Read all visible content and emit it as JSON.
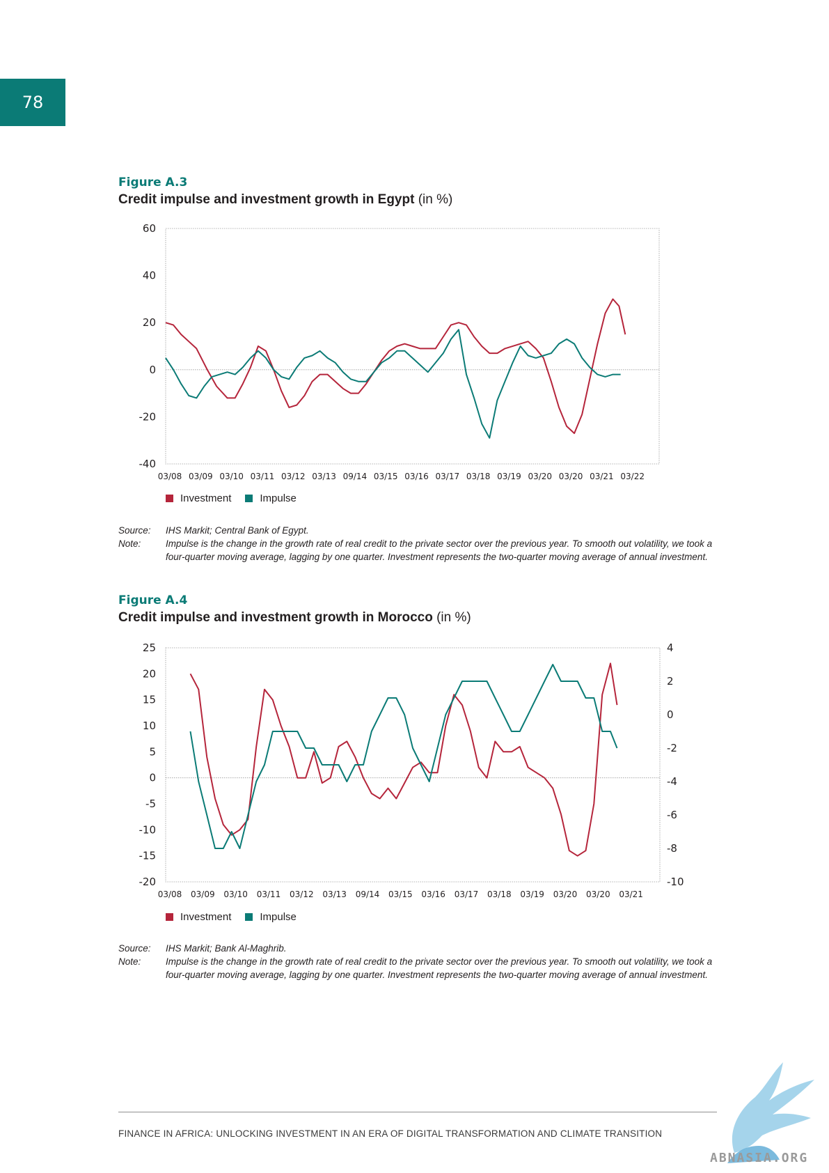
{
  "page_number": "78",
  "colors": {
    "investment": "#b5253b",
    "impulse": "#0b7b76",
    "accent": "#0b7b76"
  },
  "figures": [
    {
      "label": "Figure A.3",
      "title": "Credit impulse and investment growth in Egypt",
      "unit": "(in %)",
      "legend": {
        "investment": "Investment",
        "impulse": "Impulse"
      },
      "source_key": "Source:",
      "source": "IHS Markit; Central Bank of Egypt.",
      "note_key": "Note:",
      "note": "Impulse is the change in the growth rate of real credit to the private sector over the previous year. To smooth out volatility, we took a four-quarter moving average, lagging by one quarter. Investment represents the two-quarter moving average of annual investment."
    },
    {
      "label": "Figure A.4",
      "title": "Credit impulse and investment growth in Morocco",
      "unit": "(in %)",
      "legend": {
        "investment": "Investment",
        "impulse": "Impulse"
      },
      "source_key": "Source:",
      "source": "IHS Markit; Bank Al-Maghrib.",
      "note_key": "Note:",
      "note": "Impulse is the change in the growth rate of real credit to the private sector over the previous year. To smooth out volatility, we took a four-quarter moving average, lagging by one quarter. Investment represents the two-quarter moving average of annual investment."
    }
  ],
  "chart_data": [
    {
      "type": "line",
      "title": "Credit impulse and investment growth in Egypt",
      "x_ticks": [
        "03/08",
        "03/09",
        "03/10",
        "03/11",
        "03/12",
        "03/13",
        "09/14",
        "03/15",
        "03/16",
        "03/17",
        "03/18",
        "03/19",
        "03/20",
        "03/20",
        "03/21",
        "03/22"
      ],
      "x_range": [
        0,
        16
      ],
      "y_ticks": [
        -40,
        -20,
        0,
        20,
        40,
        60
      ],
      "ylim": [
        -40,
        60
      ],
      "grid": false,
      "legend_position": "bottom-left",
      "series": [
        {
          "name": "Investment",
          "axis": "left",
          "points": [
            [
              0,
              20
            ],
            [
              0.25,
              19
            ],
            [
              0.5,
              15
            ],
            [
              0.75,
              12
            ],
            [
              1,
              9
            ],
            [
              1.35,
              0
            ],
            [
              1.65,
              -7
            ],
            [
              2,
              -12
            ],
            [
              2.25,
              -12
            ],
            [
              2.5,
              -6
            ],
            [
              2.75,
              1
            ],
            [
              3,
              10
            ],
            [
              3.25,
              8
            ],
            [
              3.5,
              0
            ],
            [
              3.75,
              -9
            ],
            [
              4,
              -16
            ],
            [
              4.25,
              -15
            ],
            [
              4.5,
              -11
            ],
            [
              4.75,
              -5
            ],
            [
              5,
              -2
            ],
            [
              5.25,
              -2
            ],
            [
              5.5,
              -5
            ],
            [
              5.75,
              -8
            ],
            [
              6,
              -10
            ],
            [
              6.25,
              -10
            ],
            [
              6.5,
              -6
            ],
            [
              6.75,
              -1
            ],
            [
              7,
              4
            ],
            [
              7.25,
              8
            ],
            [
              7.5,
              10
            ],
            [
              7.75,
              11
            ],
            [
              8,
              10
            ],
            [
              8.25,
              9
            ],
            [
              8.5,
              9
            ],
            [
              8.75,
              9
            ],
            [
              9,
              14
            ],
            [
              9.25,
              19
            ],
            [
              9.5,
              20
            ],
            [
              9.75,
              19
            ],
            [
              10,
              14
            ],
            [
              10.25,
              10
            ],
            [
              10.5,
              7
            ],
            [
              10.75,
              7
            ],
            [
              11,
              9
            ],
            [
              11.5,
              11
            ],
            [
              11.75,
              12
            ],
            [
              12,
              9
            ],
            [
              12.25,
              5
            ],
            [
              12.5,
              -5
            ],
            [
              12.75,
              -16
            ],
            [
              13,
              -24
            ],
            [
              13.25,
              -27
            ],
            [
              13.5,
              -19
            ],
            [
              13.75,
              -4
            ],
            [
              14,
              11
            ],
            [
              14.25,
              24
            ],
            [
              14.5,
              30
            ],
            [
              14.7,
              27
            ],
            [
              14.9,
              15
            ]
          ]
        },
        {
          "name": "Impulse",
          "axis": "left",
          "points": [
            [
              0,
              5
            ],
            [
              0.25,
              0
            ],
            [
              0.5,
              -6
            ],
            [
              0.75,
              -11
            ],
            [
              1,
              -12
            ],
            [
              1.25,
              -7
            ],
            [
              1.5,
              -3
            ],
            [
              1.75,
              -2
            ],
            [
              2,
              -1
            ],
            [
              2.25,
              -2
            ],
            [
              2.5,
              1
            ],
            [
              2.75,
              5
            ],
            [
              3,
              8
            ],
            [
              3.25,
              5
            ],
            [
              3.5,
              0
            ],
            [
              3.75,
              -3
            ],
            [
              4,
              -4
            ],
            [
              4.25,
              1
            ],
            [
              4.5,
              5
            ],
            [
              4.75,
              6
            ],
            [
              5,
              8
            ],
            [
              5.25,
              5
            ],
            [
              5.5,
              3
            ],
            [
              5.75,
              -1
            ],
            [
              6,
              -4
            ],
            [
              6.25,
              -5
            ],
            [
              6.5,
              -5
            ],
            [
              6.75,
              -1
            ],
            [
              7,
              3
            ],
            [
              7.25,
              5
            ],
            [
              7.5,
              8
            ],
            [
              7.75,
              8
            ],
            [
              8,
              5
            ],
            [
              8.25,
              2
            ],
            [
              8.5,
              -1
            ],
            [
              8.75,
              3
            ],
            [
              9,
              7
            ],
            [
              9.25,
              13
            ],
            [
              9.5,
              17
            ],
            [
              9.75,
              -2
            ],
            [
              10,
              -12
            ],
            [
              10.25,
              -23
            ],
            [
              10.5,
              -29
            ],
            [
              10.75,
              -13
            ],
            [
              11,
              -5
            ],
            [
              11.25,
              3
            ],
            [
              11.5,
              10
            ],
            [
              11.75,
              6
            ],
            [
              12,
              5
            ],
            [
              12.25,
              6
            ],
            [
              12.5,
              7
            ],
            [
              12.75,
              11
            ],
            [
              13,
              13
            ],
            [
              13.25,
              11
            ],
            [
              13.5,
              5
            ],
            [
              13.75,
              1
            ],
            [
              14,
              -2
            ],
            [
              14.25,
              -3
            ],
            [
              14.5,
              -2
            ],
            [
              14.75,
              -2
            ]
          ]
        }
      ]
    },
    {
      "type": "line",
      "title": "Credit impulse and investment growth in Morocco",
      "x_ticks": [
        "03/08",
        "03/09",
        "03/10",
        "03/11",
        "03/12",
        "03/13",
        "09/14",
        "03/15",
        "03/16",
        "03/17",
        "03/18",
        "03/19",
        "03/20",
        "03/20",
        "03/21"
      ],
      "x_range": [
        0,
        15
      ],
      "y_ticks_left": [
        -20,
        -15,
        -10,
        -5,
        0,
        5,
        10,
        15,
        20,
        25
      ],
      "ylim_left": [
        -20,
        25
      ],
      "y_ticks_right": [
        -10,
        -8,
        -6,
        -4,
        -2,
        0,
        2,
        4
      ],
      "ylim_right": [
        -10,
        4
      ],
      "grid": false,
      "legend_position": "bottom-left",
      "series": [
        {
          "name": "Investment",
          "axis": "left",
          "points": [
            [
              0.75,
              20
            ],
            [
              1,
              17
            ],
            [
              1.25,
              4
            ],
            [
              1.5,
              -4
            ],
            [
              1.75,
              -9
            ],
            [
              2,
              -11
            ],
            [
              2.25,
              -10
            ],
            [
              2.5,
              -8
            ],
            [
              2.75,
              6
            ],
            [
              3,
              17
            ],
            [
              3.25,
              15
            ],
            [
              3.5,
              10
            ],
            [
              3.75,
              6
            ],
            [
              4,
              0
            ],
            [
              4.25,
              0
            ],
            [
              4.5,
              5
            ],
            [
              4.75,
              -1
            ],
            [
              5,
              0
            ],
            [
              5.25,
              6
            ],
            [
              5.5,
              7
            ],
            [
              5.75,
              4
            ],
            [
              6,
              0
            ],
            [
              6.25,
              -3
            ],
            [
              6.5,
              -4
            ],
            [
              6.75,
              -2
            ],
            [
              7,
              -4
            ],
            [
              7.25,
              -1
            ],
            [
              7.5,
              2
            ],
            [
              7.75,
              3
            ],
            [
              8,
              1
            ],
            [
              8.25,
              1
            ],
            [
              8.5,
              10
            ],
            [
              8.75,
              16
            ],
            [
              9,
              14
            ],
            [
              9.25,
              9
            ],
            [
              9.5,
              2
            ],
            [
              9.75,
              0
            ],
            [
              10,
              7
            ],
            [
              10.25,
              5
            ],
            [
              10.5,
              5
            ],
            [
              10.75,
              6
            ],
            [
              11,
              2
            ],
            [
              11.25,
              1
            ],
            [
              11.5,
              0
            ],
            [
              11.75,
              -2
            ],
            [
              12,
              -7
            ],
            [
              12.25,
              -14
            ],
            [
              12.5,
              -15
            ],
            [
              12.75,
              -14
            ],
            [
              13,
              -5
            ],
            [
              13.25,
              16
            ],
            [
              13.5,
              22
            ],
            [
              13.7,
              14
            ]
          ]
        },
        {
          "name": "Impulse",
          "axis": "right",
          "points": [
            [
              0.75,
              -1
            ],
            [
              1,
              -4
            ],
            [
              1.25,
              -6
            ],
            [
              1.5,
              -8
            ],
            [
              1.75,
              -8
            ],
            [
              2,
              -7
            ],
            [
              2.25,
              -8
            ],
            [
              2.5,
              -6
            ],
            [
              2.75,
              -4
            ],
            [
              3,
              -3
            ],
            [
              3.25,
              -1
            ],
            [
              3.5,
              -1
            ],
            [
              3.75,
              -1
            ],
            [
              4,
              -1
            ],
            [
              4.25,
              -2
            ],
            [
              4.5,
              -2
            ],
            [
              4.75,
              -3
            ],
            [
              5,
              -3
            ],
            [
              5.25,
              -3
            ],
            [
              5.5,
              -4
            ],
            [
              5.75,
              -3
            ],
            [
              6,
              -3
            ],
            [
              6.25,
              -1
            ],
            [
              6.5,
              0
            ],
            [
              6.75,
              1
            ],
            [
              7,
              1
            ],
            [
              7.25,
              0
            ],
            [
              7.5,
              -2
            ],
            [
              7.75,
              -3
            ],
            [
              8,
              -4
            ],
            [
              8.25,
              -2
            ],
            [
              8.5,
              0
            ],
            [
              8.75,
              1
            ],
            [
              9,
              2
            ],
            [
              9.25,
              2
            ],
            [
              9.5,
              2
            ],
            [
              9.75,
              2
            ],
            [
              10,
              1
            ],
            [
              10.25,
              0
            ],
            [
              10.5,
              -1
            ],
            [
              10.75,
              -1
            ],
            [
              11,
              0
            ],
            [
              11.25,
              1
            ],
            [
              11.5,
              2
            ],
            [
              11.75,
              3
            ],
            [
              12,
              2
            ],
            [
              12.25,
              2
            ],
            [
              12.5,
              2
            ],
            [
              12.75,
              1
            ],
            [
              13,
              1
            ],
            [
              13.25,
              -1
            ],
            [
              13.5,
              -1
            ],
            [
              13.7,
              -2
            ]
          ]
        }
      ]
    }
  ],
  "footer": "FINANCE IN AFRICA: UNLOCKING INVESTMENT IN AN ERA OF DIGITAL TRANSFORMATION AND CLIMATE TRANSITION",
  "watermark_text": "ABNASIA.ORG",
  "logo_icon": "bird-logo-icon"
}
